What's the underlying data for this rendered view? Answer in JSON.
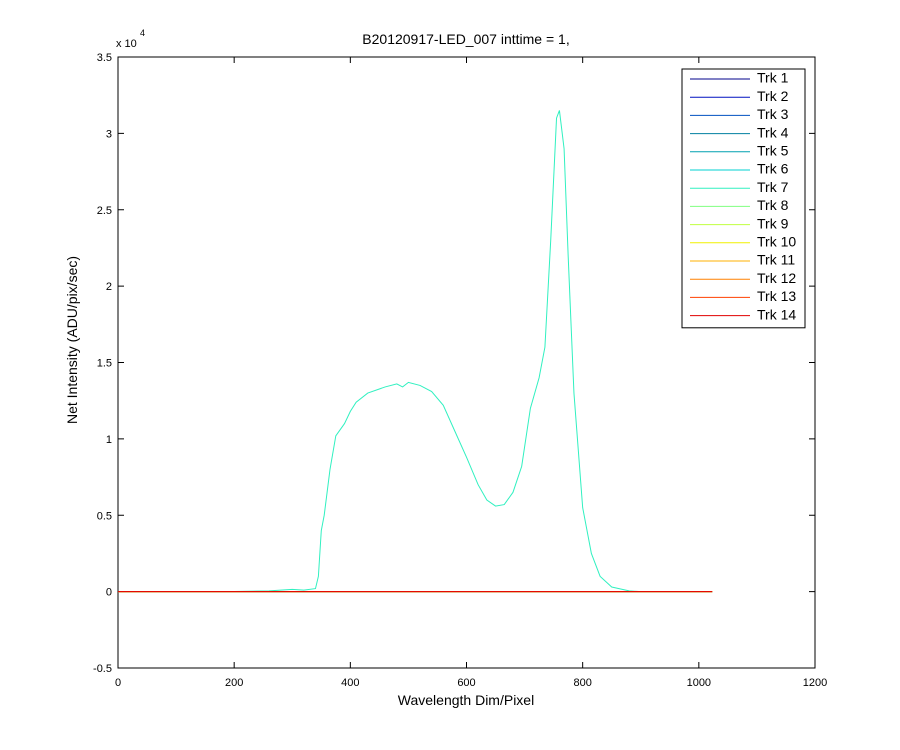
{
  "chart_data": {
    "type": "line",
    "title": "B20120917-LED_007 inttime = 1,",
    "x_label": "Wavelength Dim/Pixel",
    "y_label": "Net Intensity (ADU/pix/sec)",
    "y_multiplier": {
      "base": "x 10",
      "exponent": "4"
    },
    "xlim": [
      0,
      1200
    ],
    "xticks": [
      0,
      200,
      400,
      600,
      800,
      1000,
      1200
    ],
    "ylim": [
      -0.5,
      3.5
    ],
    "yticks": [
      -0.5,
      0,
      0.5,
      1,
      1.5,
      2,
      2.5,
      3,
      3.5
    ],
    "legend_position": "upper-right",
    "x": [
      0,
      100,
      200,
      260,
      300,
      320,
      340,
      345,
      350,
      355,
      365,
      375,
      390,
      400,
      410,
      430,
      460,
      480,
      490,
      500,
      520,
      540,
      560,
      580,
      600,
      620,
      635,
      650,
      665,
      680,
      695,
      710,
      725,
      735,
      745,
      755,
      760,
      768,
      775,
      785,
      800,
      815,
      830,
      850,
      880,
      900,
      1023
    ],
    "series": [
      {
        "name": "Trk 1",
        "color": "#00008b",
        "values": [
          0,
          0,
          0,
          0,
          0,
          0,
          0,
          0,
          0,
          0,
          0,
          0,
          0,
          0,
          0,
          0,
          0,
          0,
          0,
          0,
          0,
          0,
          0,
          0,
          0,
          0,
          0,
          0,
          0,
          0,
          0,
          0,
          0,
          0,
          0,
          0,
          0,
          0,
          0,
          0,
          0,
          0,
          0,
          0,
          0,
          0,
          0
        ]
      },
      {
        "name": "Trk 2",
        "color": "#0010c0",
        "values": [
          0,
          0,
          0,
          0,
          0,
          0,
          0,
          0,
          0,
          0,
          0,
          0,
          0,
          0,
          0,
          0,
          0,
          0,
          0,
          0,
          0,
          0,
          0,
          0,
          0,
          0,
          0,
          0,
          0,
          0,
          0,
          0,
          0,
          0,
          0,
          0,
          0,
          0,
          0,
          0,
          0,
          0,
          0,
          0,
          0,
          0,
          0
        ]
      },
      {
        "name": "Trk 3",
        "color": "#0050c0",
        "values": [
          0,
          0,
          0,
          0,
          0,
          0,
          0,
          0,
          0,
          0,
          0,
          0,
          0,
          0,
          0,
          0,
          0,
          0,
          0,
          0,
          0,
          0,
          0,
          0,
          0,
          0,
          0,
          0,
          0,
          0,
          0,
          0,
          0,
          0,
          0,
          0,
          0,
          0,
          0,
          0,
          0,
          0,
          0,
          0,
          0,
          0,
          0
        ]
      },
      {
        "name": "Trk 4",
        "color": "#007fa0",
        "values": [
          0,
          0,
          0,
          0,
          0,
          0,
          0,
          0,
          0,
          0,
          0,
          0,
          0,
          0,
          0,
          0,
          0,
          0,
          0,
          0,
          0,
          0,
          0,
          0,
          0,
          0,
          0,
          0,
          0,
          0,
          0,
          0,
          0,
          0,
          0,
          0,
          0,
          0,
          0,
          0,
          0,
          0,
          0,
          0,
          0,
          0,
          0
        ]
      },
      {
        "name": "Trk 5",
        "color": "#00a0b0",
        "values": [
          0,
          0,
          0,
          0,
          0,
          0,
          0,
          0,
          0,
          0,
          0,
          0,
          0,
          0,
          0,
          0,
          0,
          0,
          0,
          0,
          0,
          0,
          0,
          0,
          0,
          0,
          0,
          0,
          0,
          0,
          0,
          0,
          0,
          0,
          0,
          0,
          0,
          0,
          0,
          0,
          0,
          0,
          0,
          0,
          0,
          0,
          0
        ]
      },
      {
        "name": "Trk 6",
        "color": "#00d0d0",
        "values": [
          0,
          0,
          0,
          0,
          0,
          0,
          0,
          0,
          0,
          0,
          0,
          0,
          0,
          0,
          0,
          0,
          0,
          0,
          0,
          0,
          0,
          0,
          0,
          0,
          0,
          0,
          0,
          0,
          0,
          0,
          0,
          0,
          0,
          0,
          0,
          0,
          0,
          0,
          0,
          0,
          0,
          0,
          0,
          0,
          0,
          0,
          0
        ]
      },
      {
        "name": "Trk 7",
        "color": "#30f0c0",
        "values": [
          0,
          0,
          0.001,
          0.005,
          0.015,
          0.01,
          0.02,
          0.1,
          0.4,
          0.5,
          0.8,
          1.02,
          1.1,
          1.18,
          1.24,
          1.3,
          1.34,
          1.36,
          1.34,
          1.37,
          1.35,
          1.31,
          1.22,
          1.05,
          0.88,
          0.7,
          0.6,
          0.56,
          0.57,
          0.65,
          0.82,
          1.2,
          1.4,
          1.6,
          2.3,
          3.1,
          3.15,
          2.9,
          2.2,
          1.3,
          0.55,
          0.25,
          0.1,
          0.03,
          0.005,
          0,
          0
        ]
      },
      {
        "name": "Trk 8",
        "color": "#80ff80",
        "values": [
          0,
          0,
          0,
          0,
          0,
          0,
          0,
          0,
          0,
          0,
          0,
          0,
          0,
          0,
          0,
          0,
          0,
          0,
          0,
          0,
          0,
          0,
          0,
          0,
          0,
          0,
          0,
          0,
          0,
          0,
          0,
          0,
          0,
          0,
          0,
          0,
          0,
          0,
          0,
          0,
          0,
          0,
          0,
          0,
          0,
          0,
          0
        ]
      },
      {
        "name": "Trk 9",
        "color": "#c0ff40",
        "values": [
          0,
          0,
          0,
          0,
          0,
          0,
          0,
          0,
          0,
          0,
          0,
          0,
          0,
          0,
          0,
          0,
          0,
          0,
          0,
          0,
          0,
          0,
          0,
          0,
          0,
          0,
          0,
          0,
          0,
          0,
          0,
          0,
          0,
          0,
          0,
          0,
          0,
          0,
          0,
          0,
          0,
          0,
          0,
          0,
          0,
          0,
          0
        ]
      },
      {
        "name": "Trk 10",
        "color": "#f0f000",
        "values": [
          0,
          0,
          0,
          0,
          0,
          0,
          0,
          0,
          0,
          0,
          0,
          0,
          0,
          0,
          0,
          0,
          0,
          0,
          0,
          0,
          0,
          0,
          0,
          0,
          0,
          0,
          0,
          0,
          0,
          0,
          0,
          0,
          0,
          0,
          0,
          0,
          0,
          0,
          0,
          0,
          0,
          0,
          0,
          0,
          0,
          0,
          0
        ]
      },
      {
        "name": "Trk 11",
        "color": "#ffb000",
        "values": [
          0,
          0,
          0,
          0,
          0,
          0,
          0,
          0,
          0,
          0,
          0,
          0,
          0,
          0,
          0,
          0,
          0,
          0,
          0,
          0,
          0,
          0,
          0,
          0,
          0,
          0,
          0,
          0,
          0,
          0,
          0,
          0,
          0,
          0,
          0,
          0,
          0,
          0,
          0,
          0,
          0,
          0,
          0,
          0,
          0,
          0,
          0
        ]
      },
      {
        "name": "Trk 12",
        "color": "#ff8000",
        "values": [
          0,
          0,
          0,
          0,
          0,
          0,
          0,
          0,
          0,
          0,
          0,
          0,
          0,
          0,
          0,
          0,
          0,
          0,
          0,
          0,
          0,
          0,
          0,
          0,
          0,
          0,
          0,
          0,
          0,
          0,
          0,
          0,
          0,
          0,
          0,
          0,
          0,
          0,
          0,
          0,
          0,
          0,
          0,
          0,
          0,
          0,
          0
        ]
      },
      {
        "name": "Trk 13",
        "color": "#ff4000",
        "values": [
          0,
          0,
          0,
          0,
          0,
          0,
          0,
          0,
          0,
          0,
          0,
          0,
          0,
          0,
          0,
          0,
          0,
          0,
          0,
          0,
          0,
          0,
          0,
          0,
          0,
          0,
          0,
          0,
          0,
          0,
          0,
          0,
          0,
          0,
          0,
          0,
          0,
          0,
          0,
          0,
          0,
          0,
          0,
          0,
          0,
          0,
          0
        ]
      },
      {
        "name": "Trk 14",
        "color": "#e00000",
        "values": [
          0,
          0,
          0,
          0,
          0,
          0,
          0,
          0,
          0,
          0,
          0,
          0,
          0,
          0,
          0,
          0,
          0,
          0,
          0,
          0,
          0,
          0,
          0,
          0,
          0,
          0,
          0,
          0,
          0,
          0,
          0,
          0,
          0,
          0,
          0,
          0,
          0,
          0,
          0,
          0,
          0,
          0,
          0,
          0,
          0,
          0,
          0
        ]
      }
    ]
  }
}
